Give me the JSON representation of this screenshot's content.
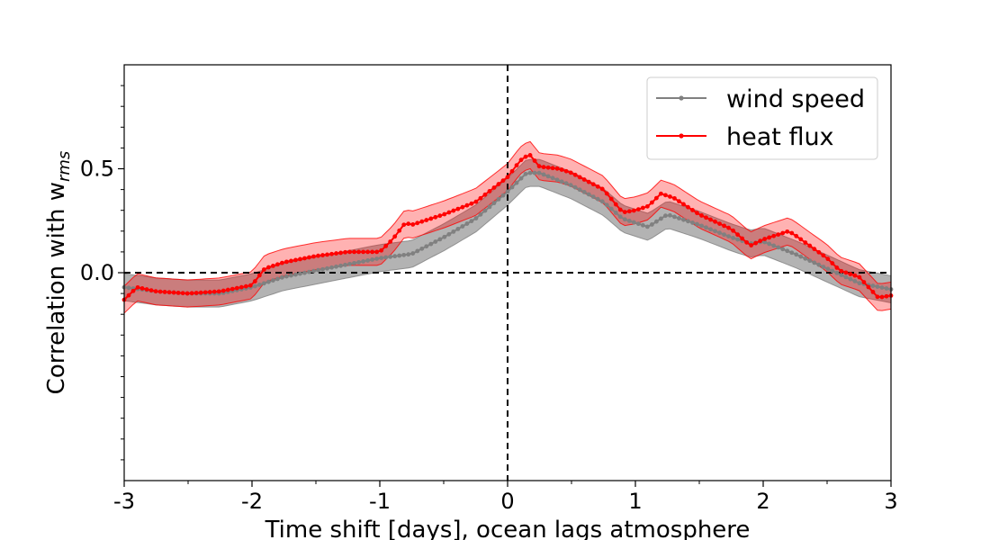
{
  "chart_data": {
    "type": "line",
    "title": "",
    "xlabel": "Time shift [days], ocean lags atmosphere",
    "ylabel_prefix": "Correlation with w",
    "ylabel_subscript": "rms",
    "xlim": [
      -3,
      3
    ],
    "ylim": [
      -1.0,
      1.0
    ],
    "xticks": [
      -3,
      -2,
      -1,
      0,
      1,
      2,
      3
    ],
    "xtick_labels": [
      "-3",
      "-2",
      "-1",
      "0",
      "1",
      "2",
      "3"
    ],
    "yticks": [
      0.0,
      0.5
    ],
    "ytick_labels": [
      "0.0",
      "0.5"
    ],
    "grid": false,
    "legend_position": "upper right",
    "reference_lines": {
      "horizontal": 0.0,
      "vertical": 0.0,
      "style": "dashed"
    },
    "series": [
      {
        "name": "wind speed",
        "color": "#808080",
        "band_color": "#808080",
        "band_halfwidth": 0.065,
        "x": [
          -3.0,
          -2.75,
          -2.5,
          -2.25,
          -2.0,
          -1.75,
          -1.5,
          -1.25,
          -1.0,
          -0.75,
          -0.5,
          -0.25,
          0.0,
          0.15,
          0.25,
          0.5,
          0.75,
          0.9,
          1.0,
          1.1,
          1.25,
          1.5,
          1.75,
          1.9,
          2.0,
          2.25,
          2.5,
          2.75,
          3.0
        ],
        "y": [
          -0.07,
          -0.09,
          -0.1,
          -0.1,
          -0.07,
          -0.02,
          0.01,
          0.04,
          0.07,
          0.09,
          0.17,
          0.26,
          0.39,
          0.48,
          0.48,
          0.42,
          0.34,
          0.26,
          0.24,
          0.22,
          0.28,
          0.23,
          0.17,
          0.14,
          0.15,
          0.09,
          0.02,
          -0.05,
          -0.08
        ]
      },
      {
        "name": "heat flux",
        "color": "#ff0000",
        "band_color": "#ff0000",
        "band_halfwidth": 0.065,
        "x": [
          -3.0,
          -2.9,
          -2.75,
          -2.5,
          -2.25,
          -2.0,
          -1.9,
          -1.75,
          -1.5,
          -1.25,
          -1.0,
          -0.9,
          -0.8,
          -0.75,
          -0.5,
          -0.25,
          0.0,
          0.1,
          0.17,
          0.25,
          0.4,
          0.5,
          0.75,
          0.9,
          1.0,
          1.1,
          1.2,
          1.3,
          1.5,
          1.75,
          1.9,
          2.0,
          2.1,
          2.2,
          2.25,
          2.5,
          2.6,
          2.75,
          2.9,
          3.0
        ],
        "y": [
          -0.13,
          -0.07,
          -0.09,
          -0.1,
          -0.09,
          -0.06,
          0.02,
          0.05,
          0.08,
          0.1,
          0.1,
          0.16,
          0.24,
          0.23,
          0.28,
          0.34,
          0.46,
          0.54,
          0.57,
          0.51,
          0.5,
          0.48,
          0.4,
          0.29,
          0.3,
          0.32,
          0.38,
          0.36,
          0.28,
          0.21,
          0.13,
          0.16,
          0.18,
          0.2,
          0.18,
          0.07,
          0.01,
          -0.02,
          -0.12,
          -0.11
        ]
      }
    ]
  }
}
